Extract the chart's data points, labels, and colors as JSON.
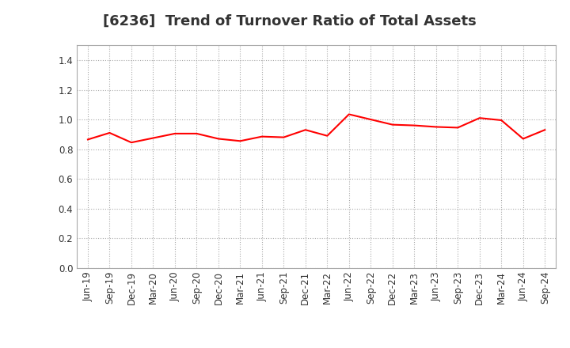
{
  "title": "[6236]  Trend of Turnover Ratio of Total Assets",
  "line_color": "#FF0000",
  "line_width": 1.5,
  "background_color": "#FFFFFF",
  "grid_color": "#AAAAAA",
  "ylim": [
    0.0,
    1.5
  ],
  "yticks": [
    0.0,
    0.2,
    0.4,
    0.6,
    0.8,
    1.0,
    1.2,
    1.4
  ],
  "labels": [
    "Jun-19",
    "Sep-19",
    "Dec-19",
    "Mar-20",
    "Jun-20",
    "Sep-20",
    "Dec-20",
    "Mar-21",
    "Jun-21",
    "Sep-21",
    "Dec-21",
    "Mar-22",
    "Jun-22",
    "Sep-22",
    "Dec-22",
    "Mar-23",
    "Jun-23",
    "Sep-23",
    "Dec-23",
    "Mar-24",
    "Jun-24",
    "Sep-24"
  ],
  "values": [
    0.865,
    0.91,
    0.845,
    0.875,
    0.905,
    0.905,
    0.87,
    0.855,
    0.885,
    0.88,
    0.93,
    0.89,
    1.035,
    1.0,
    0.965,
    0.96,
    0.95,
    0.945,
    1.01,
    0.995,
    0.87,
    0.93
  ],
  "title_fontsize": 13,
  "tick_fontsize": 8.5,
  "title_color": "#333333"
}
